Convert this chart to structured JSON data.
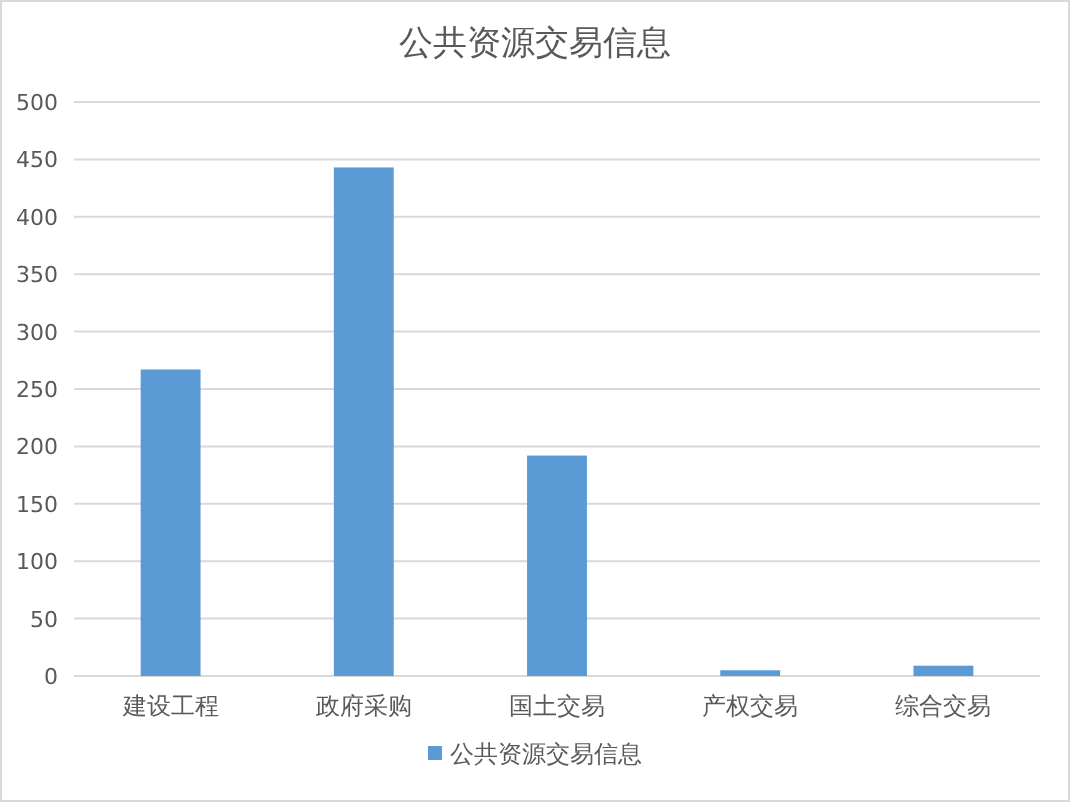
{
  "chart_data": {
    "type": "bar",
    "title": "公共资源交易信息",
    "categories": [
      "建设工程",
      "政府采购",
      "国土交易",
      "产权交易",
      "综合交易"
    ],
    "series": [
      {
        "name": "公共资源交易信息",
        "color": "#5b9bd5",
        "values": [
          267,
          443,
          192,
          5,
          9
        ]
      }
    ],
    "ylim": [
      0,
      500
    ],
    "yticks": [
      0,
      50,
      100,
      150,
      200,
      250,
      300,
      350,
      400,
      450,
      500
    ],
    "grid": "y",
    "legend": "bottom"
  }
}
